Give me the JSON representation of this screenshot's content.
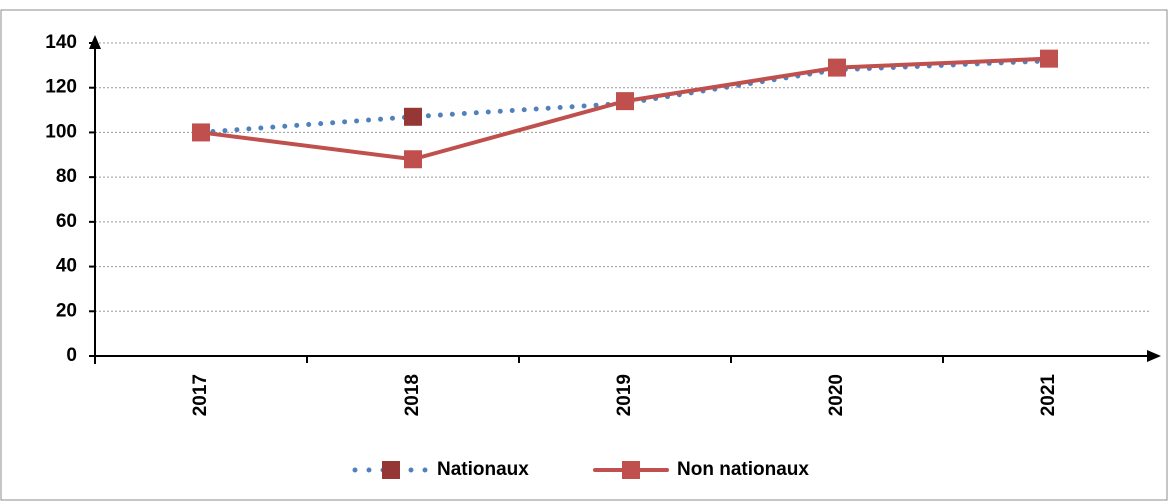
{
  "chart_data": {
    "type": "line",
    "categories": [
      "2017",
      "2018",
      "2019",
      "2020",
      "2021"
    ],
    "series": [
      {
        "name": "Nationaux",
        "color": "#4f81bd",
        "dash": "dotted",
        "marker_color": "#953735",
        "markers": [
          false,
          true,
          false,
          false,
          false
        ],
        "values": [
          100,
          107,
          113,
          128,
          132
        ]
      },
      {
        "name": "Non nationaux",
        "color": "#c0504d",
        "dash": "solid",
        "marker_color": "#c0504d",
        "markers": [
          true,
          true,
          true,
          true,
          true
        ],
        "values": [
          100,
          88,
          114,
          129,
          133
        ]
      }
    ],
    "ylim": [
      0,
      140
    ],
    "yticks": [
      0,
      20,
      40,
      60,
      80,
      100,
      120,
      140
    ],
    "grid": true
  }
}
